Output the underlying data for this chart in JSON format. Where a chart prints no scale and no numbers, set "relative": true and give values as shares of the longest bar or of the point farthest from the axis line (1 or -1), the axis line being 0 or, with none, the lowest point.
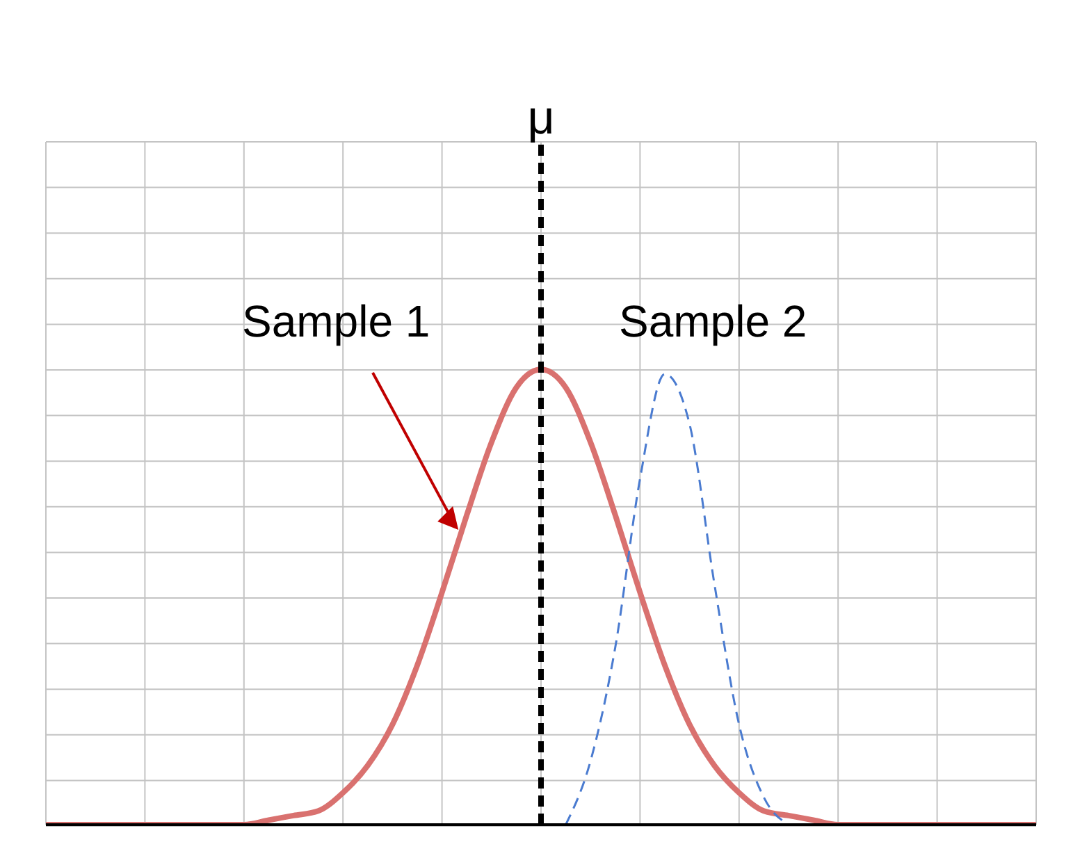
{
  "chart_data": {
    "type": "line",
    "relative": true,
    "categories": [
      null,
      null,
      null,
      null,
      null,
      null,
      null,
      null,
      null,
      null,
      null,
      null,
      null,
      null,
      null,
      null,
      null,
      null,
      null,
      null,
      null,
      null,
      null,
      null,
      null,
      null,
      null,
      null,
      null,
      null,
      null,
      null,
      null,
      null,
      null,
      null,
      null,
      null,
      null,
      null,
      null
    ],
    "series": [
      {
        "name": "Sample 1",
        "color": "#d9716f",
        "line_style": "solid",
        "values": [
          0,
          0,
          0,
          0,
          0,
          0,
          0,
          0,
          0,
          0.01,
          0.02,
          0.03,
          0.07,
          0.13,
          0.22,
          0.35,
          0.51,
          0.68,
          0.84,
          0.96,
          1,
          0.96,
          0.84,
          0.68,
          0.51,
          0.35,
          0.22,
          0.13,
          0.07,
          0.03,
          0.02,
          0.01,
          0,
          0,
          0,
          0,
          0,
          0,
          0,
          0,
          0
        ]
      },
      {
        "name": "Sample 2",
        "color": "#4a7bd0",
        "line_style": "dashed",
        "values": [
          null,
          null,
          null,
          null,
          null,
          null,
          null,
          null,
          null,
          null,
          null,
          null,
          null,
          null,
          null,
          null,
          null,
          null,
          null,
          null,
          null,
          0,
          0.14,
          0.39,
          0.76,
          0.99,
          0.88,
          0.53,
          0.22,
          0.06,
          0,
          null,
          null,
          null,
          null,
          null,
          null,
          null,
          null,
          null,
          null
        ]
      }
    ],
    "annotations": [
      "μ"
    ],
    "grid": true,
    "marker": "none"
  }
}
